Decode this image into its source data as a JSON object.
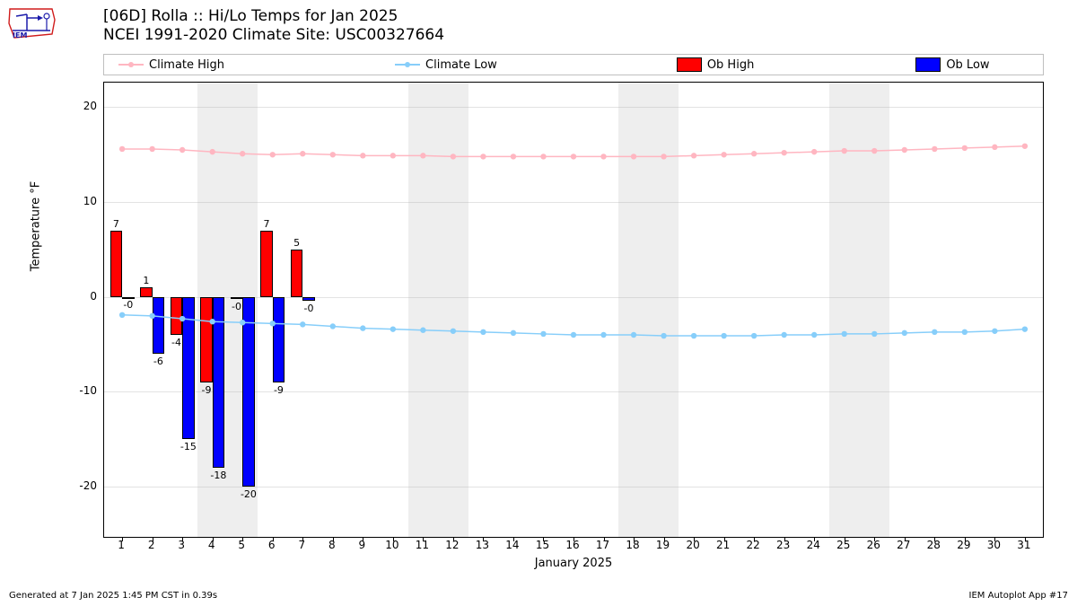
{
  "title_line1": "[06D] Rolla :: Hi/Lo Temps for Jan 2025",
  "title_line2": "NCEI 1991-2020 Climate Site: USC00327664",
  "ylabel": "Temperature °F",
  "xlabel": "January 2025",
  "footer_left": "Generated at 7 Jan 2025 1:45 PM CST in 0.39s",
  "footer_right": "IEM Autoplot App #17",
  "legend": {
    "climate_high": "Climate High",
    "climate_low": "Climate Low",
    "ob_high": "Ob High",
    "ob_low": "Ob Low"
  },
  "colors": {
    "climate_high": "#ffb6c1",
    "climate_low": "#87cefa",
    "ob_high": "#ff0000",
    "ob_low": "#0000ff",
    "bar_edge": "#000000",
    "weekend_band": "#eeeeee",
    "grid": "#b0b0b0",
    "background": "#ffffff"
  },
  "y_axis": {
    "min": -25.3,
    "max": 22.6,
    "ticks": [
      -20,
      -10,
      0,
      10,
      20
    ]
  },
  "x_axis": {
    "days": 31,
    "min": 0.4,
    "max": 31.6
  },
  "weekend_bands": [
    {
      "start": 3.5,
      "end": 5.5
    },
    {
      "start": 10.5,
      "end": 12.5
    },
    {
      "start": 17.5,
      "end": 19.5
    },
    {
      "start": 24.5,
      "end": 26.5
    }
  ],
  "climate_high": [
    15.6,
    15.6,
    15.5,
    15.3,
    15.1,
    15.0,
    15.1,
    15.0,
    14.9,
    14.9,
    14.9,
    14.8,
    14.8,
    14.8,
    14.8,
    14.8,
    14.8,
    14.8,
    14.8,
    14.9,
    15.0,
    15.1,
    15.2,
    15.3,
    15.4,
    15.4,
    15.5,
    15.6,
    15.7,
    15.8,
    15.9
  ],
  "climate_low": [
    -1.9,
    -2.0,
    -2.3,
    -2.6,
    -2.7,
    -2.8,
    -2.9,
    -3.1,
    -3.3,
    -3.4,
    -3.5,
    -3.6,
    -3.7,
    -3.8,
    -3.9,
    -4.0,
    -4.0,
    -4.0,
    -4.1,
    -4.1,
    -4.1,
    -4.1,
    -4.0,
    -4.0,
    -3.9,
    -3.9,
    -3.8,
    -3.7,
    -3.7,
    -3.6,
    -3.4
  ],
  "ob_high": [
    {
      "day": 1,
      "val": 7,
      "label": "7"
    },
    {
      "day": 2,
      "val": 1,
      "label": "1"
    },
    {
      "day": 3,
      "val": -4,
      "label": "-4"
    },
    {
      "day": 4,
      "val": -9,
      "label": "-9"
    },
    {
      "day": 5,
      "val": -0.2,
      "label": "-0"
    },
    {
      "day": 6,
      "val": 7,
      "label": "7"
    },
    {
      "day": 7,
      "val": 5,
      "label": "5"
    }
  ],
  "ob_low": [
    {
      "day": 1,
      "val": -0.03,
      "label": "-0"
    },
    {
      "day": 2,
      "val": -6,
      "label": "-6"
    },
    {
      "day": 3,
      "val": -15,
      "label": "-15"
    },
    {
      "day": 4,
      "val": -18,
      "label": "-18"
    },
    {
      "day": 5,
      "val": -20,
      "label": "-20"
    },
    {
      "day": 6,
      "val": -9,
      "label": "-9"
    },
    {
      "day": 7,
      "val": -0.4,
      "label": "-0"
    }
  ],
  "bar_half_width_days": 0.2,
  "marker_radius": 3.2,
  "line_width": 1.5,
  "font_sizes": {
    "title": 17,
    "axis_label": 13,
    "tick": 12,
    "legend": 13,
    "bar_label": 11,
    "footer": 10
  }
}
